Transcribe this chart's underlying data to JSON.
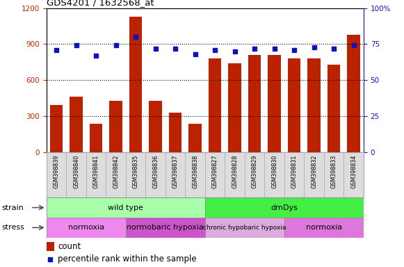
{
  "title": "GDS4201 / 1632568_at",
  "samples": [
    "GSM398839",
    "GSM398840",
    "GSM398841",
    "GSM398842",
    "GSM398835",
    "GSM398836",
    "GSM398837",
    "GSM398838",
    "GSM398827",
    "GSM398828",
    "GSM398829",
    "GSM398830",
    "GSM398831",
    "GSM398832",
    "GSM398833",
    "GSM398834"
  ],
  "counts": [
    390,
    460,
    235,
    430,
    1130,
    430,
    330,
    235,
    780,
    740,
    810,
    810,
    780,
    780,
    730,
    980
  ],
  "percentile_ranks": [
    71,
    74,
    67,
    74,
    80,
    72,
    72,
    68,
    71,
    70,
    72,
    72,
    71,
    73,
    72,
    74
  ],
  "ylim_left": [
    0,
    1200
  ],
  "ylim_right": [
    0,
    100
  ],
  "yticks_left": [
    0,
    300,
    600,
    900,
    1200
  ],
  "yticks_right": [
    0,
    25,
    50,
    75,
    100
  ],
  "bar_color": "#BB2200",
  "dot_color": "#1111BB",
  "strain_groups": [
    {
      "label": "wild type",
      "start": 0,
      "end": 8,
      "color": "#AAFFAA"
    },
    {
      "label": "dmDys",
      "start": 8,
      "end": 16,
      "color": "#44EE44"
    }
  ],
  "stress_groups": [
    {
      "label": "normoxia",
      "start": 0,
      "end": 4,
      "color": "#EE88EE"
    },
    {
      "label": "normobaric hypoxia",
      "start": 4,
      "end": 8,
      "color": "#CC55CC"
    },
    {
      "label": "chronic hypobaric hypoxia",
      "start": 8,
      "end": 12,
      "color": "#DDAADD"
    },
    {
      "label": "normoxia",
      "start": 12,
      "end": 16,
      "color": "#DD77DD"
    }
  ],
  "legend_count_color": "#BB2200",
  "legend_dot_color": "#1111BB",
  "bg_color": "#FFFFFF",
  "grid_color": "#000000",
  "strain_label": "strain",
  "stress_label": "stress",
  "tick_bg_color": "#DDDDDD",
  "tick_border_color": "#AAAAAA"
}
